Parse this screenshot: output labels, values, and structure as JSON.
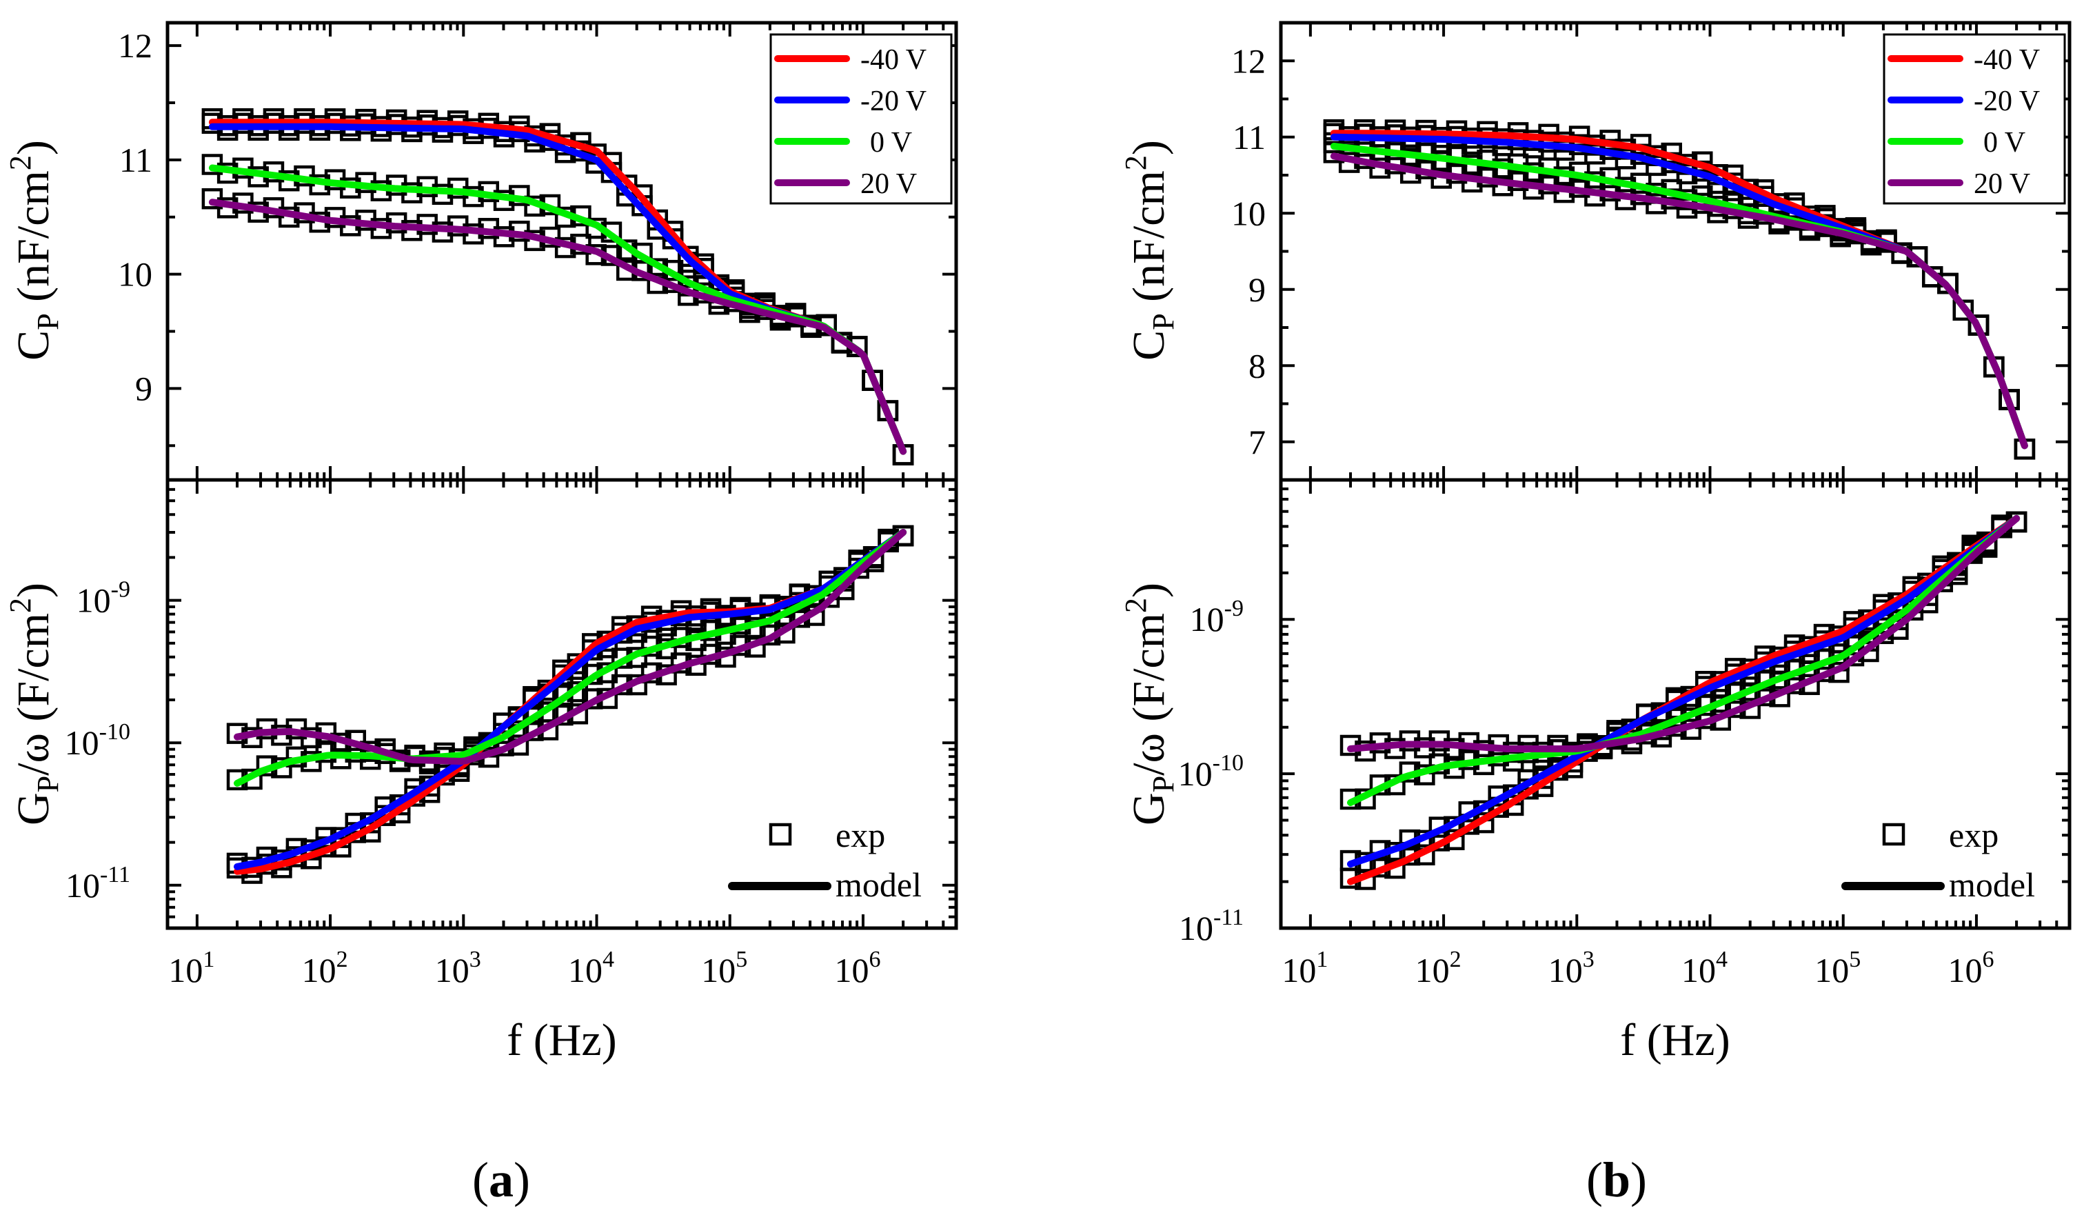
{
  "figure": {
    "captions": [
      {
        "open": "(",
        "letter": "a",
        "close": ")"
      },
      {
        "open": "(",
        "letter": "b",
        "close": ")"
      }
    ]
  },
  "legend": {
    "voltage_series": [
      {
        "name": "-40 V",
        "color": "#ff0000"
      },
      {
        "name": "-20 V",
        "color": "#0000ff"
      },
      {
        "name": "0 V",
        "color": "#00ee00"
      },
      {
        "name": "20 V",
        "color": "#7f007f"
      }
    ],
    "marker_label": "exp",
    "line_label": "model",
    "line_color": "#000000",
    "marker_color": "#000000"
  },
  "chart_data": [
    {
      "id": "a-cp",
      "panel": "a",
      "type": "scatter",
      "title": "",
      "xlabel": "f (Hz)",
      "ylabel": {
        "main": "C",
        "sub": "P",
        "unit": " (nF/cm",
        "sup": "2",
        "close": ")"
      },
      "xscale": "log",
      "yscale": "linear",
      "xlim": [
        6,
        5000000
      ],
      "ylim": [
        8.2,
        12.2
      ],
      "yticks": [
        9,
        10,
        11,
        12
      ],
      "grid": false,
      "legend_position": "top-right",
      "series": [
        {
          "name": "-40 V",
          "x": [
            13,
            30,
            100,
            300,
            1000,
            3000,
            10000,
            20000,
            50000,
            100000,
            200000,
            500000,
            1000000,
            2000000
          ],
          "values": [
            11.33,
            11.33,
            11.33,
            11.32,
            11.31,
            11.26,
            11.08,
            10.72,
            10.17,
            9.85,
            9.7,
            9.55,
            9.3,
            8.45
          ]
        },
        {
          "name": "-20 V",
          "x": [
            13,
            30,
            100,
            300,
            1000,
            3000,
            10000,
            20000,
            50000,
            100000,
            200000,
            500000,
            1000000,
            2000000
          ],
          "values": [
            11.29,
            11.29,
            11.29,
            11.28,
            11.27,
            11.21,
            11.0,
            10.62,
            10.12,
            9.83,
            9.69,
            9.55,
            9.3,
            8.45
          ]
        },
        {
          "name": "0 V",
          "x": [
            13,
            30,
            100,
            300,
            1000,
            3000,
            10000,
            20000,
            50000,
            100000,
            200000,
            500000,
            1000000,
            2000000
          ],
          "values": [
            10.93,
            10.88,
            10.8,
            10.75,
            10.72,
            10.65,
            10.43,
            10.18,
            9.92,
            9.78,
            9.68,
            9.55,
            9.3,
            8.45
          ]
        },
        {
          "name": "20 V",
          "x": [
            13,
            30,
            100,
            300,
            1000,
            3000,
            10000,
            20000,
            50000,
            100000,
            200000,
            500000,
            1000000,
            2000000
          ],
          "values": [
            10.63,
            10.57,
            10.47,
            10.42,
            10.39,
            10.34,
            10.2,
            10.02,
            9.84,
            9.74,
            9.65,
            9.54,
            9.3,
            8.45
          ]
        }
      ]
    },
    {
      "id": "a-gp",
      "panel": "a",
      "type": "scatter",
      "title": "",
      "xlabel": "f (Hz)",
      "ylabel": {
        "main": "G",
        "sub": "P",
        "unit": "/ω (F/cm",
        "sup": "2",
        "close": ")"
      },
      "xscale": "log",
      "yscale": "log",
      "xlim": [
        6,
        5000000
      ],
      "ylim": [
        5e-12,
        7e-09
      ],
      "yticks": [
        1e-11,
        1e-10,
        1e-09
      ],
      "grid": false,
      "legend_position": "bottom-right",
      "series": [
        {
          "name": "-40 V",
          "x": [
            20,
            30,
            50,
            100,
            200,
            400,
            1000,
            2000,
            5000,
            10000,
            20000,
            50000,
            100000,
            200000,
            500000,
            1000000,
            2000000
          ],
          "values": [
            1.25e-11,
            1.3e-11,
            1.45e-11,
            1.8e-11,
            2.5e-11,
            3.8e-11,
            7e-11,
            1.3e-10,
            2.8e-10,
            5e-10,
            7e-10,
            8.2e-10,
            8.3e-10,
            8.8e-10,
            1.2e-09,
            1.9e-09,
            3e-09
          ]
        },
        {
          "name": "-20 V",
          "x": [
            20,
            30,
            50,
            100,
            200,
            400,
            1000,
            2000,
            5000,
            10000,
            20000,
            50000,
            100000,
            200000,
            500000,
            1000000,
            2000000
          ],
          "values": [
            1.35e-11,
            1.45e-11,
            1.65e-11,
            2.1e-11,
            2.9e-11,
            4.3e-11,
            7.5e-11,
            1.3e-10,
            2.6e-10,
            4.5e-10,
            6.3e-10,
            7.6e-10,
            8e-10,
            8.6e-10,
            1.2e-09,
            1.9e-09,
            3e-09
          ]
        },
        {
          "name": "0 V",
          "x": [
            20,
            30,
            50,
            100,
            200,
            400,
            1000,
            2000,
            5000,
            10000,
            20000,
            50000,
            100000,
            200000,
            500000,
            1000000,
            2000000
          ],
          "values": [
            5.2e-11,
            6.3e-11,
            7.4e-11,
            8.2e-11,
            8.1e-11,
            7.7e-11,
            8.2e-11,
            1.1e-10,
            1.9e-10,
            3e-10,
            4.2e-10,
            5.4e-10,
            6.2e-10,
            7.2e-10,
            1.1e-09,
            1.85e-09,
            3e-09
          ]
        },
        {
          "name": "20 V",
          "x": [
            20,
            30,
            50,
            100,
            200,
            400,
            1000,
            2000,
            5000,
            10000,
            20000,
            50000,
            100000,
            200000,
            500000,
            1000000,
            2000000
          ],
          "values": [
            1.1e-10,
            1.18e-10,
            1.2e-10,
            1.1e-10,
            9.2e-11,
            7.6e-11,
            7.4e-11,
            9e-11,
            1.4e-10,
            2e-10,
            2.7e-10,
            3.6e-10,
            4.3e-10,
            5.4e-10,
            9e-10,
            1.7e-09,
            3e-09
          ]
        }
      ]
    },
    {
      "id": "b-cp",
      "panel": "b",
      "type": "scatter",
      "title": "",
      "xlabel": "f (Hz)",
      "ylabel": {
        "main": "C",
        "sub": "P",
        "unit": " (nF/cm",
        "sup": "2",
        "close": ")"
      },
      "xscale": "log",
      "yscale": "linear",
      "xlim": [
        6,
        5000000
      ],
      "ylim": [
        6.5,
        12.5
      ],
      "yticks": [
        7,
        8,
        9,
        10,
        11,
        12
      ],
      "grid": false,
      "legend_position": "top-right",
      "series": [
        {
          "name": "-40 V",
          "x": [
            15,
            30,
            100,
            300,
            1000,
            3000,
            10000,
            30000,
            100000,
            300000,
            600000,
            1000000,
            1500000,
            2300000
          ],
          "values": [
            11.05,
            11.05,
            11.04,
            11.02,
            10.97,
            10.86,
            10.6,
            10.2,
            9.83,
            9.5,
            9.05,
            8.55,
            7.85,
            6.95
          ]
        },
        {
          "name": "-20 V",
          "x": [
            15,
            30,
            100,
            300,
            1000,
            3000,
            10000,
            30000,
            100000,
            300000,
            600000,
            1000000,
            1500000,
            2300000
          ],
          "values": [
            11.0,
            10.99,
            10.97,
            10.93,
            10.86,
            10.73,
            10.48,
            10.12,
            9.8,
            9.5,
            9.05,
            8.55,
            7.85,
            6.95
          ]
        },
        {
          "name": "0 V",
          "x": [
            15,
            30,
            100,
            300,
            1000,
            3000,
            10000,
            30000,
            100000,
            300000,
            600000,
            1000000,
            1500000,
            2300000
          ],
          "values": [
            10.88,
            10.82,
            10.72,
            10.62,
            10.5,
            10.35,
            10.16,
            9.96,
            9.75,
            9.5,
            9.05,
            8.55,
            7.85,
            6.95
          ]
        },
        {
          "name": "20 V",
          "x": [
            15,
            30,
            100,
            300,
            1000,
            3000,
            10000,
            30000,
            100000,
            300000,
            600000,
            1000000,
            1500000,
            2300000
          ],
          "values": [
            10.75,
            10.65,
            10.5,
            10.4,
            10.3,
            10.2,
            10.07,
            9.92,
            9.73,
            9.5,
            9.05,
            8.55,
            7.85,
            6.95
          ]
        }
      ]
    },
    {
      "id": "b-gp",
      "panel": "b",
      "type": "scatter",
      "title": "",
      "xlabel": "f (Hz)",
      "ylabel": {
        "main": "G",
        "sub": "P",
        "unit": "/ω (F/cm",
        "sup": "2",
        "close": ")"
      },
      "xscale": "log",
      "yscale": "log",
      "xlim": [
        6,
        5000000
      ],
      "ylim": [
        1e-11,
        8e-09
      ],
      "yticks": [
        1e-11,
        1e-10,
        1e-09
      ],
      "grid": false,
      "legend_position": "bottom-right",
      "series": [
        {
          "name": "-40 V",
          "x": [
            20,
            50,
            100,
            300,
            1000,
            3000,
            10000,
            30000,
            100000,
            300000,
            1000000,
            2000000
          ],
          "values": [
            2e-11,
            2.7e-11,
            3.6e-11,
            6.2e-11,
            1.2e-10,
            2.2e-10,
            3.9e-10,
            5.8e-10,
            8.4e-10,
            1.45e-09,
            3e-09,
            4.5e-09
          ]
        },
        {
          "name": "-20 V",
          "x": [
            20,
            50,
            100,
            300,
            1000,
            3000,
            10000,
            30000,
            100000,
            300000,
            1000000,
            2000000
          ],
          "values": [
            2.6e-11,
            3.4e-11,
            4.4e-11,
            7.3e-11,
            1.3e-10,
            2.2e-10,
            3.6e-10,
            5.3e-10,
            7.6e-10,
            1.35e-09,
            2.9e-09,
            4.5e-09
          ]
        },
        {
          "name": "0 V",
          "x": [
            20,
            50,
            100,
            300,
            1000,
            3000,
            10000,
            30000,
            100000,
            300000,
            1000000,
            2000000
          ],
          "values": [
            6.5e-11,
            9.5e-11,
            1.12e-10,
            1.26e-10,
            1.4e-10,
            1.8e-10,
            2.7e-10,
            4e-10,
            5.8e-10,
            1.15e-09,
            2.8e-09,
            4.5e-09
          ]
        },
        {
          "name": "20 V",
          "x": [
            20,
            50,
            100,
            300,
            1000,
            3000,
            10000,
            30000,
            100000,
            300000,
            1000000,
            2000000
          ],
          "values": [
            1.45e-10,
            1.55e-10,
            1.55e-10,
            1.45e-10,
            1.45e-10,
            1.68e-10,
            2.2e-10,
            3.2e-10,
            4.9e-10,
            1e-09,
            2.7e-09,
            4.5e-09
          ]
        }
      ]
    }
  ]
}
